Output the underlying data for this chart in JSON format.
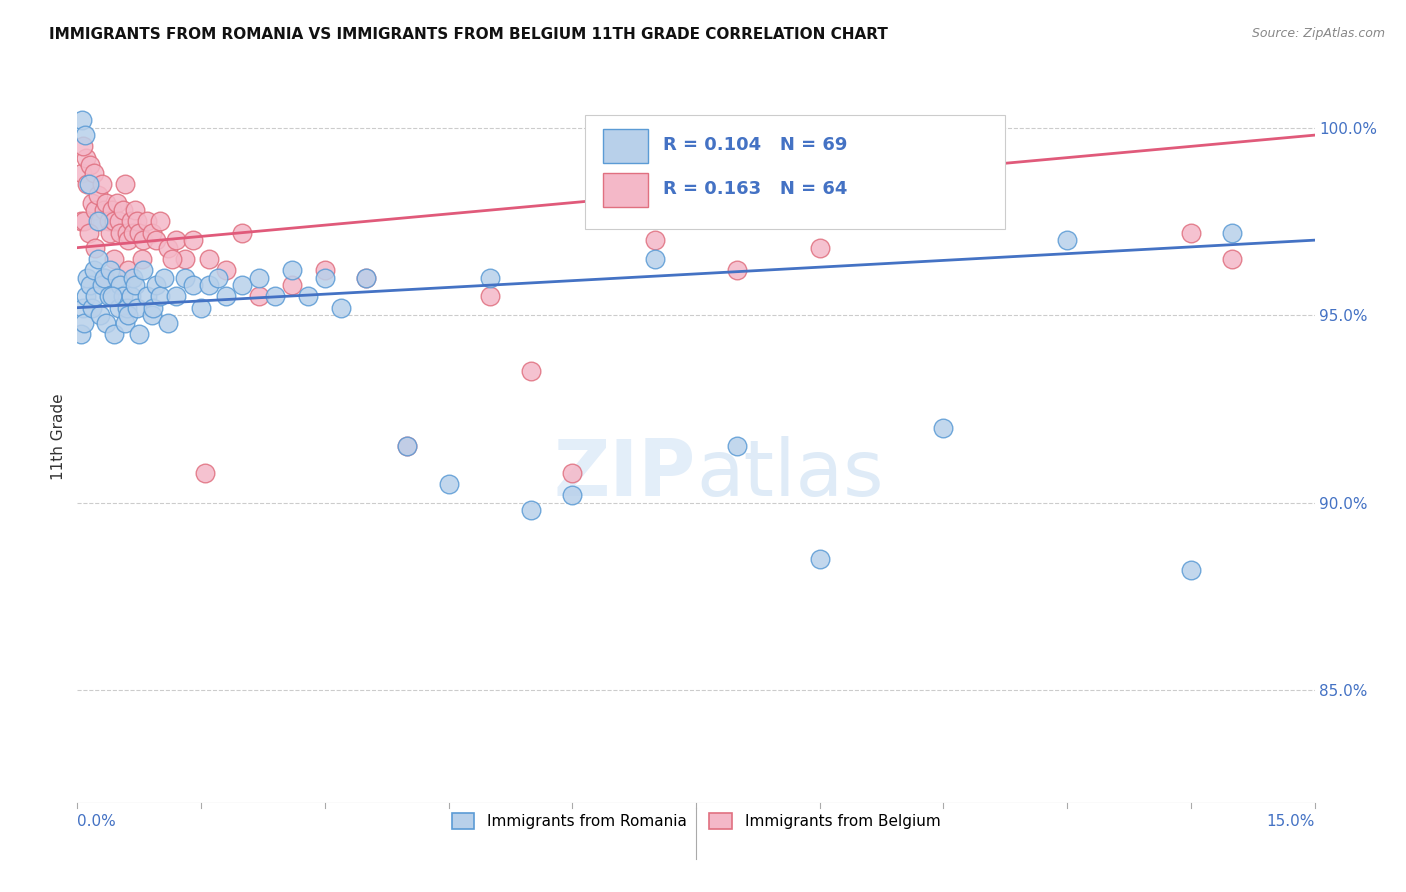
{
  "title": "IMMIGRANTS FROM ROMANIA VS IMMIGRANTS FROM BELGIUM 11TH GRADE CORRELATION CHART",
  "source": "Source: ZipAtlas.com",
  "ylabel": "11th Grade",
  "xmin": 0.0,
  "xmax": 15.0,
  "ymin": 82.0,
  "ymax": 101.5,
  "yticks": [
    85.0,
    90.0,
    95.0,
    100.0
  ],
  "ytick_labels": [
    "85.0%",
    "90.0%",
    "95.0%",
    "100.0%"
  ],
  "r_romania": 0.104,
  "n_romania": 69,
  "r_belgium": 0.163,
  "n_belgium": 64,
  "romania_color": "#b8d0ea",
  "romania_edge": "#5b9bd5",
  "belgium_color": "#f4b8c8",
  "belgium_edge": "#e07080",
  "line_romania_color": "#4472c4",
  "line_belgium_color": "#e05a7a",
  "romania_x": [
    0.05,
    0.07,
    0.08,
    0.1,
    0.12,
    0.15,
    0.18,
    0.2,
    0.22,
    0.25,
    0.28,
    0.3,
    0.32,
    0.35,
    0.38,
    0.4,
    0.45,
    0.48,
    0.5,
    0.52,
    0.55,
    0.58,
    0.6,
    0.62,
    0.65,
    0.68,
    0.7,
    0.72,
    0.75,
    0.8,
    0.85,
    0.9,
    0.92,
    0.95,
    1.0,
    1.05,
    1.1,
    1.2,
    1.3,
    1.4,
    1.5,
    1.6,
    1.7,
    1.8,
    2.0,
    2.2,
    2.4,
    2.6,
    2.8,
    3.0,
    3.2,
    3.5,
    4.0,
    4.5,
    5.0,
    5.5,
    6.0,
    7.0,
    8.0,
    9.0,
    10.5,
    12.0,
    13.5,
    14.0,
    0.06,
    0.09,
    0.14,
    0.25,
    0.42
  ],
  "romania_y": [
    94.5,
    95.2,
    94.8,
    95.5,
    96.0,
    95.8,
    95.2,
    96.2,
    95.5,
    96.5,
    95.0,
    95.8,
    96.0,
    94.8,
    95.5,
    96.2,
    94.5,
    96.0,
    95.2,
    95.8,
    95.5,
    94.8,
    95.2,
    95.0,
    95.5,
    96.0,
    95.8,
    95.2,
    94.5,
    96.2,
    95.5,
    95.0,
    95.2,
    95.8,
    95.5,
    96.0,
    94.8,
    95.5,
    96.0,
    95.8,
    95.2,
    95.8,
    96.0,
    95.5,
    95.8,
    96.0,
    95.5,
    96.2,
    95.5,
    96.0,
    95.2,
    96.0,
    91.5,
    90.5,
    96.0,
    89.8,
    90.2,
    96.5,
    91.5,
    88.5,
    92.0,
    97.0,
    88.2,
    97.2,
    100.2,
    99.8,
    98.5,
    97.5,
    95.5
  ],
  "belgium_x": [
    0.04,
    0.06,
    0.08,
    0.1,
    0.12,
    0.15,
    0.18,
    0.2,
    0.22,
    0.25,
    0.28,
    0.3,
    0.32,
    0.35,
    0.38,
    0.4,
    0.42,
    0.45,
    0.48,
    0.5,
    0.52,
    0.55,
    0.58,
    0.6,
    0.62,
    0.65,
    0.68,
    0.7,
    0.72,
    0.75,
    0.8,
    0.85,
    0.9,
    0.95,
    1.0,
    1.1,
    1.2,
    1.3,
    1.4,
    1.6,
    1.8,
    2.0,
    2.2,
    2.6,
    3.0,
    3.5,
    4.0,
    5.0,
    6.0,
    7.0,
    9.0,
    14.0,
    0.07,
    0.14,
    0.22,
    0.33,
    0.44,
    0.62,
    0.78,
    1.15,
    1.55,
    5.5,
    8.0,
    13.5
  ],
  "belgium_y": [
    97.5,
    98.8,
    97.5,
    99.2,
    98.5,
    99.0,
    98.0,
    98.8,
    97.8,
    98.2,
    97.5,
    98.5,
    97.8,
    98.0,
    97.5,
    97.2,
    97.8,
    97.5,
    98.0,
    97.5,
    97.2,
    97.8,
    98.5,
    97.2,
    97.0,
    97.5,
    97.2,
    97.8,
    97.5,
    97.2,
    97.0,
    97.5,
    97.2,
    97.0,
    97.5,
    96.8,
    97.0,
    96.5,
    97.0,
    96.5,
    96.2,
    97.2,
    95.5,
    95.8,
    96.2,
    96.0,
    91.5,
    95.5,
    90.8,
    97.0,
    96.8,
    96.5,
    99.5,
    97.2,
    96.8,
    96.0,
    96.5,
    96.2,
    96.5,
    96.5,
    90.8,
    93.5,
    96.2,
    97.2
  ]
}
